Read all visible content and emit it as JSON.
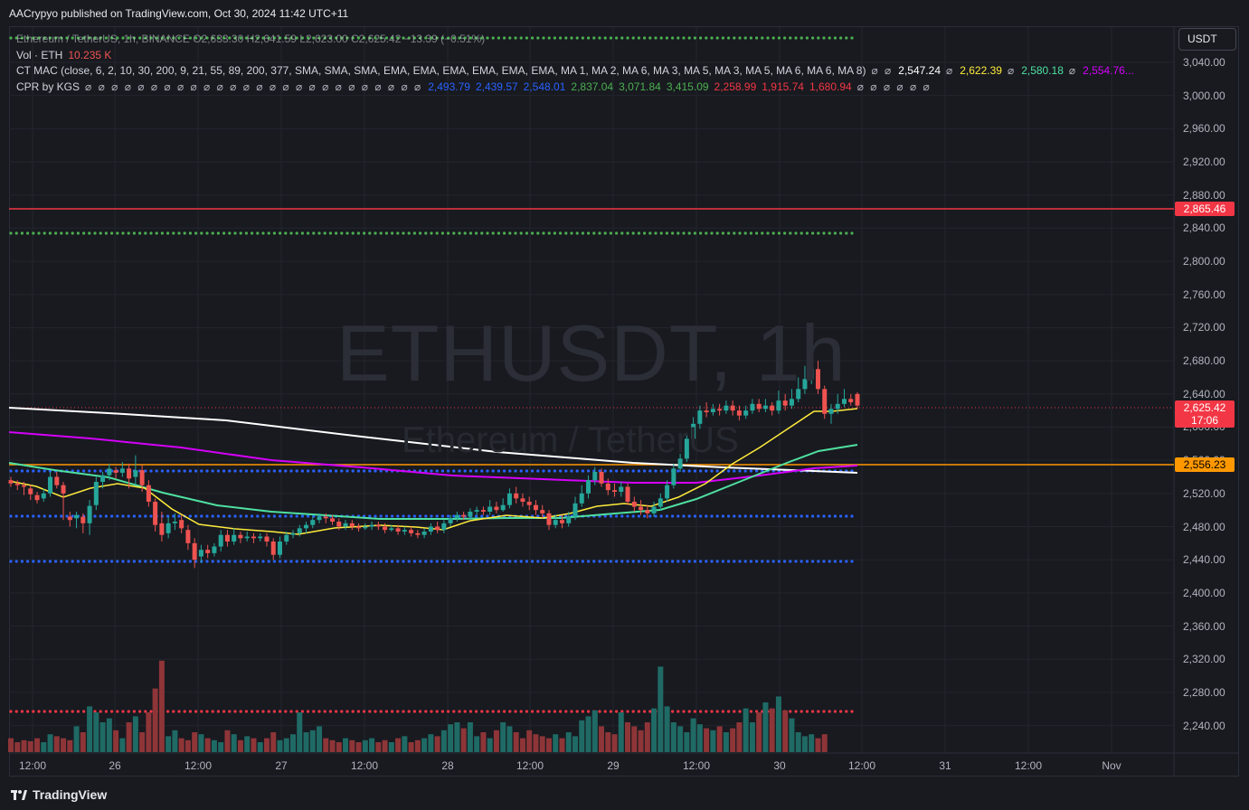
{
  "attribution": "AACrypyo published on TradingView.com, Oct 30, 2024 11:42 UTC+11",
  "currency_button": "USDT",
  "watermark": {
    "symbol": "ETHUSDT, 1h",
    "description": "Ethereum / TetherUS"
  },
  "legend": {
    "symbol_line": "Ethereum / TetherUS, 1h, BINANCE O2,633.30 H2,641.59 L2,623.00 C2,625.42 −13.39 (−0.51%)",
    "vol": {
      "label": "Vol · ETH",
      "value": "10.235 K"
    },
    "ctmac": {
      "label": "CT MAC (close, 6, 2, 10, 30, 200, 9, 21, 55, 89, 200, 377, SMA, SMA, SMA, EMA, EMA, EMA, EMA, EMA, EMA, MA 1, MA 2, MA 6, MA 3, MA 5, MA 3, MA 5, MA 6, MA 6, MA 8)",
      "nulls_before": "⌀ ⌀",
      "values": [
        {
          "text": "2,547.24",
          "color": "#ffffff",
          "prefix": ""
        },
        {
          "text": "2,622.39",
          "color": "#ffeb3b",
          "prefix": "⌀"
        },
        {
          "text": "2,580.18",
          "color": "#4fe0a0",
          "prefix": "⌀"
        },
        {
          "text": "2,554.76...",
          "color": "#d500f9",
          "prefix": "⌀"
        }
      ]
    },
    "cpr": {
      "label": "CPR by KGS",
      "nulls_before": "⌀ ⌀ ⌀ ⌀ ⌀ ⌀ ⌀ ⌀ ⌀ ⌀ ⌀ ⌀ ⌀ ⌀ ⌀ ⌀ ⌀ ⌀ ⌀ ⌀ ⌀ ⌀ ⌀ ⌀ ⌀ ⌀",
      "values": [
        {
          "text": "2,493.79",
          "color": "#2962ff"
        },
        {
          "text": "2,439.57",
          "color": "#2962ff"
        },
        {
          "text": "2,548.01",
          "color": "#2962ff"
        },
        {
          "text": "2,837.04",
          "color": "#4caf50"
        },
        {
          "text": "3,071.84",
          "color": "#4caf50"
        },
        {
          "text": "3,415.09",
          "color": "#4caf50"
        },
        {
          "text": "2,258.99",
          "color": "#f23645"
        },
        {
          "text": "1,915.74",
          "color": "#f23645"
        },
        {
          "text": "1,680.94",
          "color": "#f23645"
        }
      ],
      "nulls_after": "⌀ ⌀ ⌀ ⌀ ⌀ ⌀"
    }
  },
  "price_axis": [
    "3,040.00",
    "3,000.00",
    "2,960.00",
    "2,920.00",
    "2,880.00",
    "2,840.00",
    "2,800.00",
    "2,760.00",
    "2,720.00",
    "2,680.00",
    "2,640.00",
    "2,600.00",
    "2,560.00",
    "2,520.00",
    "2,480.00",
    "2,440.00",
    "2,400.00",
    "2,360.00",
    "2,320.00",
    "2,280.00",
    "2,240.00"
  ],
  "price_tags": {
    "red_level": {
      "text": "2,865.46",
      "color": "#f23645"
    },
    "last_price": {
      "text": "2,625.42",
      "countdown": "17:06",
      "color": "#f23645"
    },
    "orange_level": {
      "text": "2,556.23",
      "color": "#ff9800"
    }
  },
  "time_axis": [
    "12:00",
    "26",
    "12:00",
    "27",
    "12:00",
    "28",
    "12:00",
    "29",
    "12:00",
    "30",
    "12:00",
    "31",
    "12:00",
    "Nov"
  ],
  "brand": "TradingView",
  "colors": {
    "up": "#26a69a",
    "down": "#ef5350",
    "ema_yellow": "#ffeb3b",
    "ema_green": "#4fe0a0",
    "ema_purple": "#d500f9",
    "sma_white": "#ffffff",
    "red_line": "#f23645",
    "orange_line": "#ff9800",
    "cpr_blue": "#2962ff",
    "cpr_green": "#4caf50",
    "cpr_red": "#f23645"
  }
}
